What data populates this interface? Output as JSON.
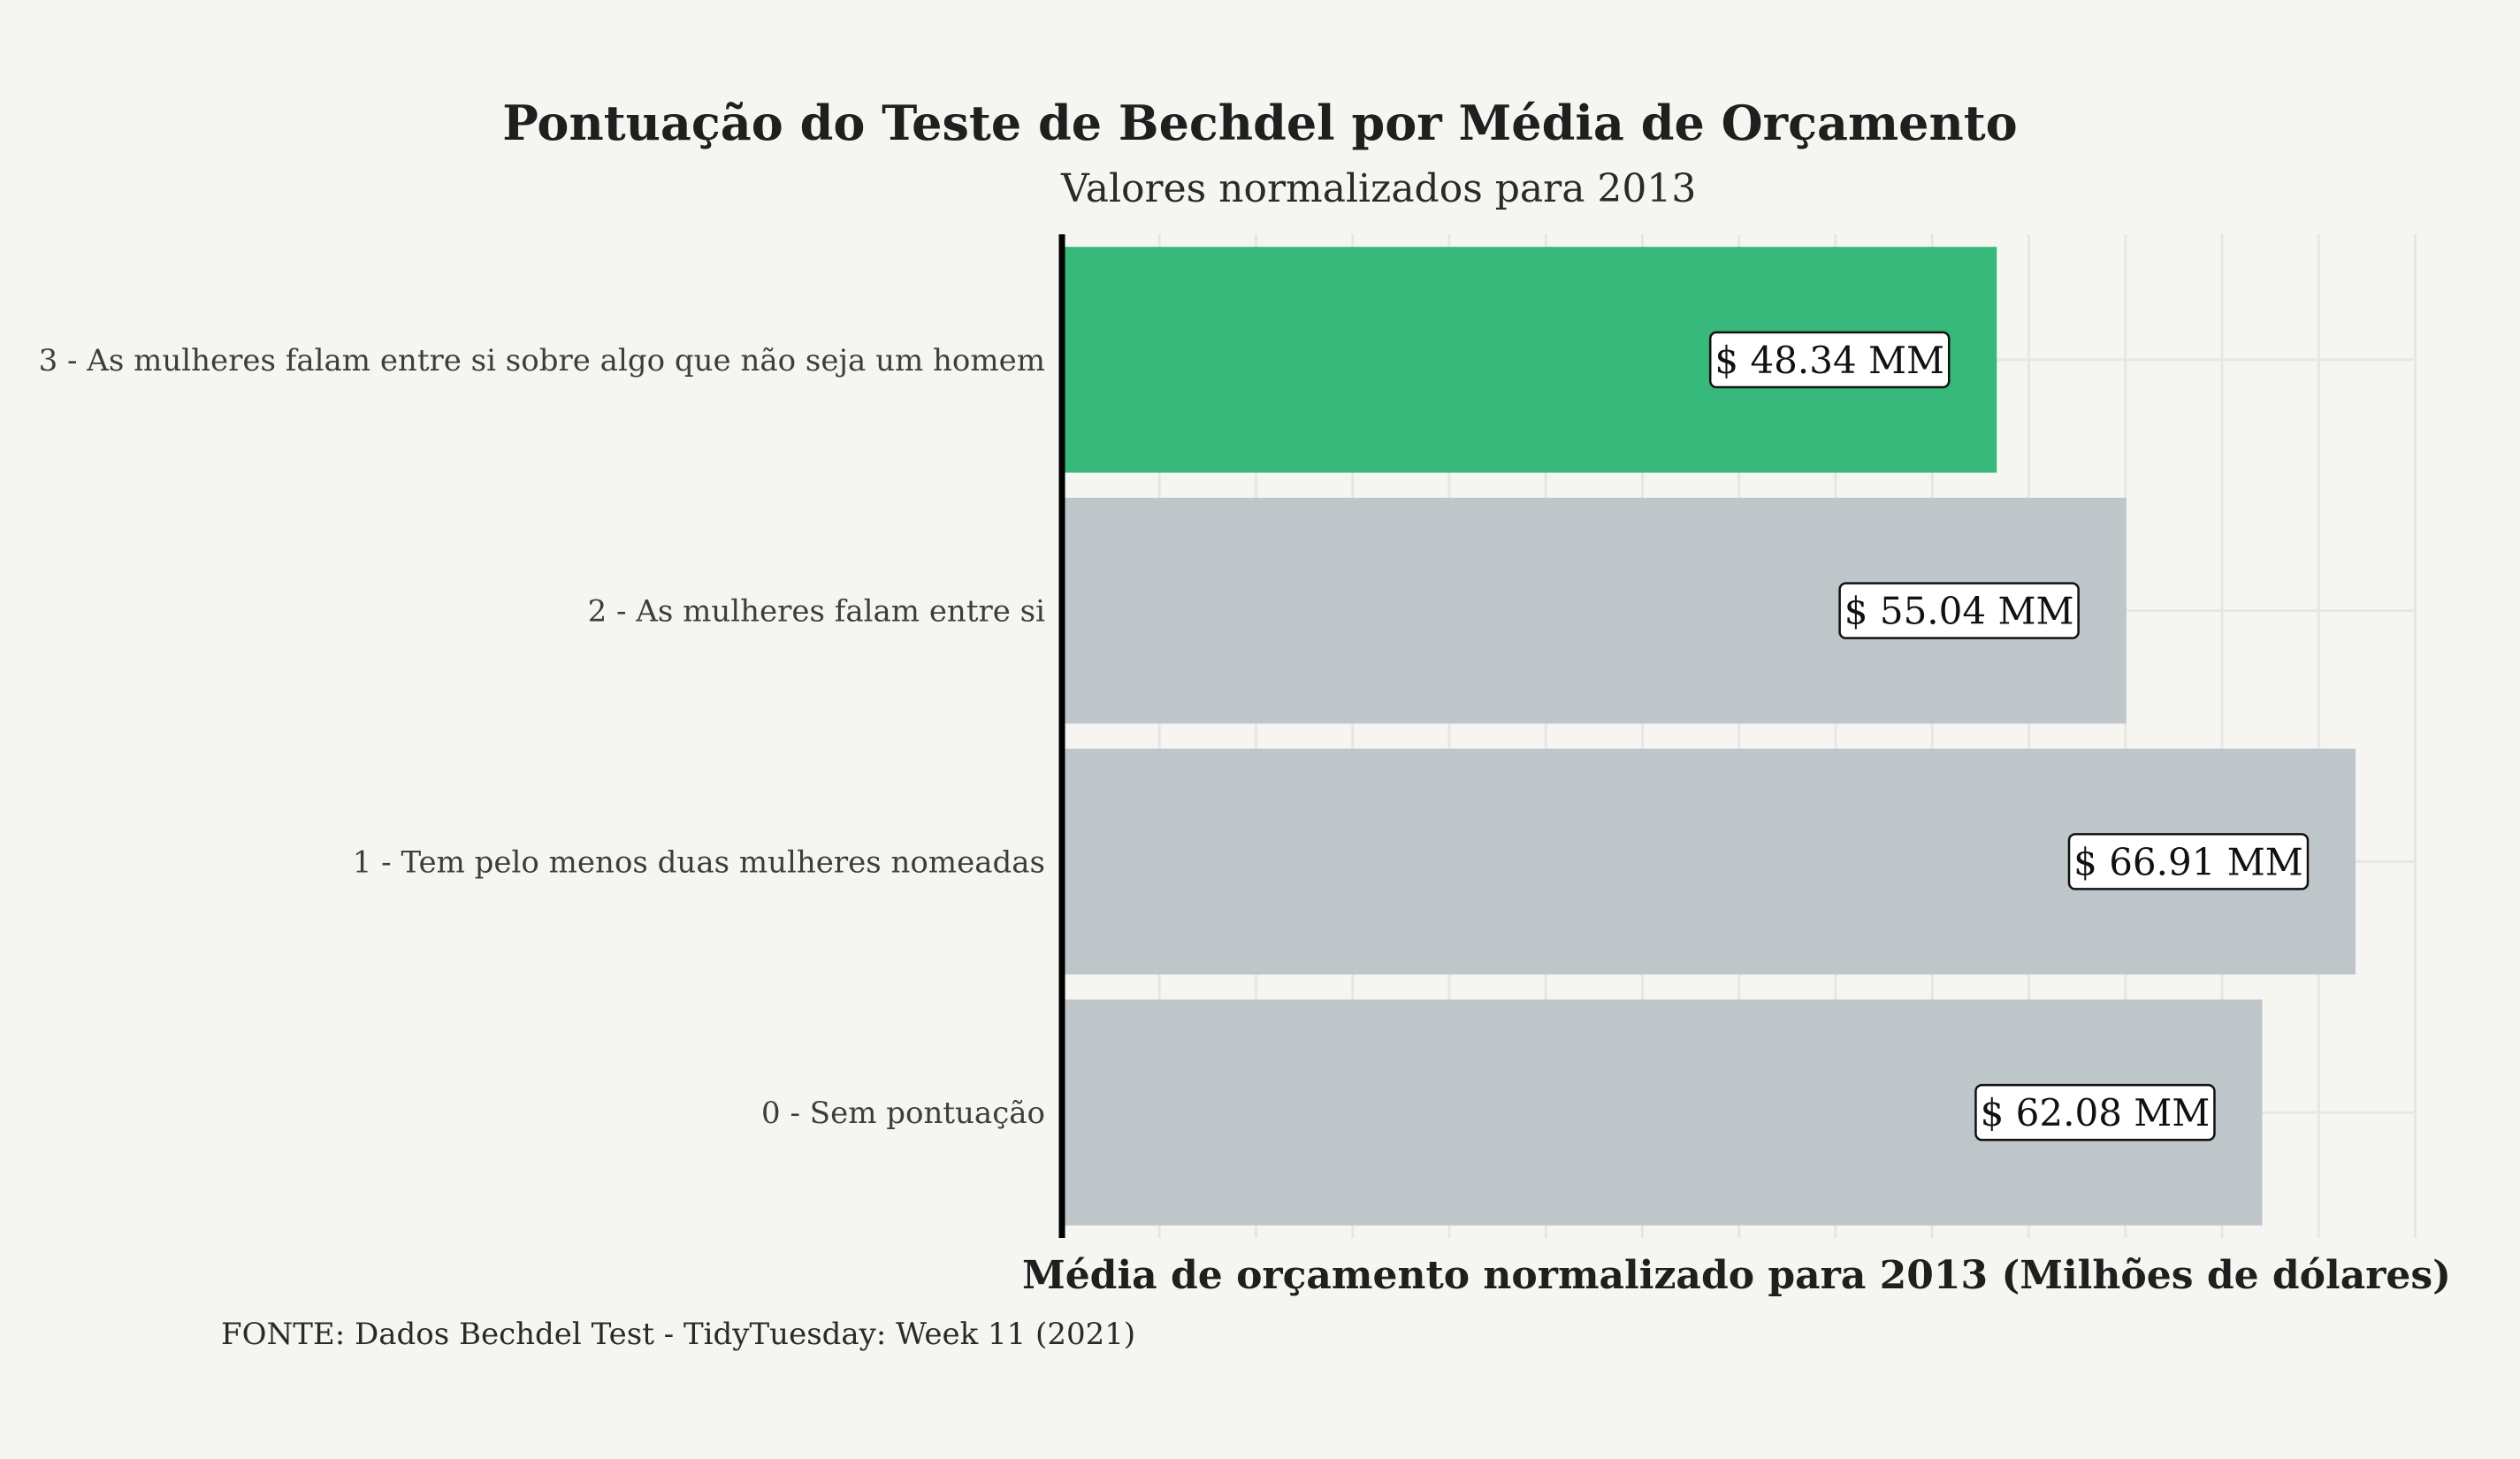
{
  "chart_data": {
    "type": "bar",
    "orientation": "horizontal",
    "title": "Pontuação do Teste de Bechdel por Média de Orçamento",
    "subtitle": "Valores normalizados para 2013",
    "xlabel": "Média de orçamento normalizado para 2013 (Milhões de dólares)",
    "ylabel": "",
    "caption": "FONTE: Dados Bechdel Test - TidyTuesday: Week 11 (2021)",
    "categories": [
      "3 - As mulheres falam entre si sobre algo que não seja um homem",
      "2 - As mulheres falam entre si",
      "1 - Tem pelo menos duas mulheres nomeadas",
      "0 - Sem pontuação"
    ],
    "values": [
      48.34,
      55.04,
      66.91,
      62.08
    ],
    "value_labels": [
      "$ 48.34 MM",
      "$ 55.04 MM",
      "$ 66.91 MM",
      "$ 62.08 MM"
    ],
    "bar_colors": [
      "#36b97a",
      "#bec6c9",
      "#bec6c9",
      "#bec6c9"
    ],
    "xlim": [
      0,
      70
    ],
    "grid": true,
    "legend": "none"
  }
}
